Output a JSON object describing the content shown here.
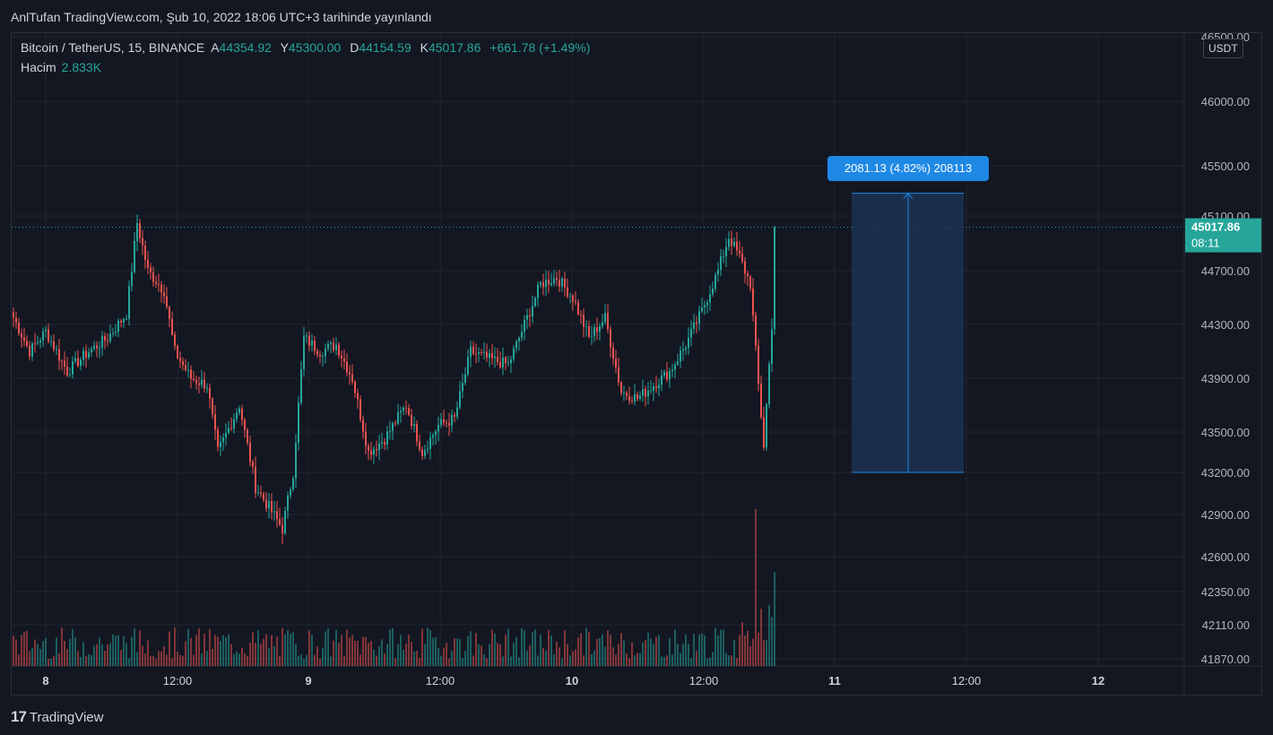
{
  "header": {
    "published": "AnlTufan TradingView.com, Şub 10, 2022 18:06 UTC+3 tarihinde yayınlandı"
  },
  "legend": {
    "symbol": "Bitcoin / TetherUS, 15, BINANCE",
    "open_label": "A",
    "open": "44354.92",
    "high_label": "Y",
    "high": "45300.00",
    "low_label": "D",
    "low": "44154.59",
    "close_label": "K",
    "close": "45017.86",
    "change": "+661.78 (+1.49%)",
    "volume_label": "Hacim",
    "volume": "2.833K"
  },
  "currency": "USDT",
  "measure_label": "2081.13 (4.82%) 208113",
  "current_price_label": "45017.86",
  "countdown": "08:11",
  "footer": {
    "logo": "17",
    "brand": "TradingView"
  },
  "colors": {
    "background": "#131722",
    "grid": "#1f2430",
    "up": "#26a69a",
    "down": "#ef5350",
    "accent": "#1e88e5",
    "range_fill": "#1d3557"
  },
  "chart_data": {
    "type": "candlestick",
    "y_ticks": [
      "46500.00",
      "46000.00",
      "45500.00",
      "45100.00",
      "44700.00",
      "44300.00",
      "43900.00",
      "43500.00",
      "43200.00",
      "42900.00",
      "42600.00",
      "42350.00",
      "42110.00",
      "41870.00"
    ],
    "x_ticks": [
      "8",
      "12:00",
      "9",
      "12:00",
      "10",
      "12:00",
      "11",
      "12:00",
      "12"
    ],
    "ohlc_anchors": [
      {
        "i": 0,
        "c": 44350
      },
      {
        "i": 6,
        "c": 44100
      },
      {
        "i": 12,
        "c": 44250
      },
      {
        "i": 20,
        "c": 43950
      },
      {
        "i": 28,
        "c": 44100
      },
      {
        "i": 35,
        "c": 44200
      },
      {
        "i": 42,
        "c": 44380
      },
      {
        "i": 46,
        "c": 45050
      },
      {
        "i": 50,
        "c": 44700
      },
      {
        "i": 56,
        "c": 44550
      },
      {
        "i": 60,
        "c": 44100
      },
      {
        "i": 66,
        "c": 43900
      },
      {
        "i": 72,
        "c": 43850
      },
      {
        "i": 76,
        "c": 43350
      },
      {
        "i": 84,
        "c": 43700
      },
      {
        "i": 90,
        "c": 43100
      },
      {
        "i": 95,
        "c": 42950
      },
      {
        "i": 100,
        "c": 42800
      },
      {
        "i": 104,
        "c": 43200
      },
      {
        "i": 108,
        "c": 44200
      },
      {
        "i": 114,
        "c": 44100
      },
      {
        "i": 120,
        "c": 44150
      },
      {
        "i": 126,
        "c": 43900
      },
      {
        "i": 132,
        "c": 43350
      },
      {
        "i": 138,
        "c": 43450
      },
      {
        "i": 146,
        "c": 43700
      },
      {
        "i": 152,
        "c": 43350
      },
      {
        "i": 158,
        "c": 43550
      },
      {
        "i": 164,
        "c": 43600
      },
      {
        "i": 170,
        "c": 44100
      },
      {
        "i": 176,
        "c": 44050
      },
      {
        "i": 184,
        "c": 44000
      },
      {
        "i": 190,
        "c": 44300
      },
      {
        "i": 196,
        "c": 44600
      },
      {
        "i": 202,
        "c": 44650
      },
      {
        "i": 208,
        "c": 44500
      },
      {
        "i": 214,
        "c": 44200
      },
      {
        "i": 220,
        "c": 44350
      },
      {
        "i": 226,
        "c": 43800
      },
      {
        "i": 232,
        "c": 43750
      },
      {
        "i": 238,
        "c": 43850
      },
      {
        "i": 244,
        "c": 43950
      },
      {
        "i": 250,
        "c": 44150
      },
      {
        "i": 256,
        "c": 44400
      },
      {
        "i": 262,
        "c": 44700
      },
      {
        "i": 266,
        "c": 44950
      },
      {
        "i": 270,
        "c": 44800
      },
      {
        "i": 274,
        "c": 44600
      },
      {
        "i": 277,
        "c": 43850
      },
      {
        "i": 279,
        "c": 43400
      },
      {
        "i": 282,
        "c": 44300
      },
      {
        "i": 283,
        "c": 45017
      }
    ],
    "current_price": 45017.86,
    "measure": {
      "from": 43200,
      "to": 45281,
      "change": "2081.13",
      "percent": "4.82%",
      "ticks": "208113"
    }
  }
}
